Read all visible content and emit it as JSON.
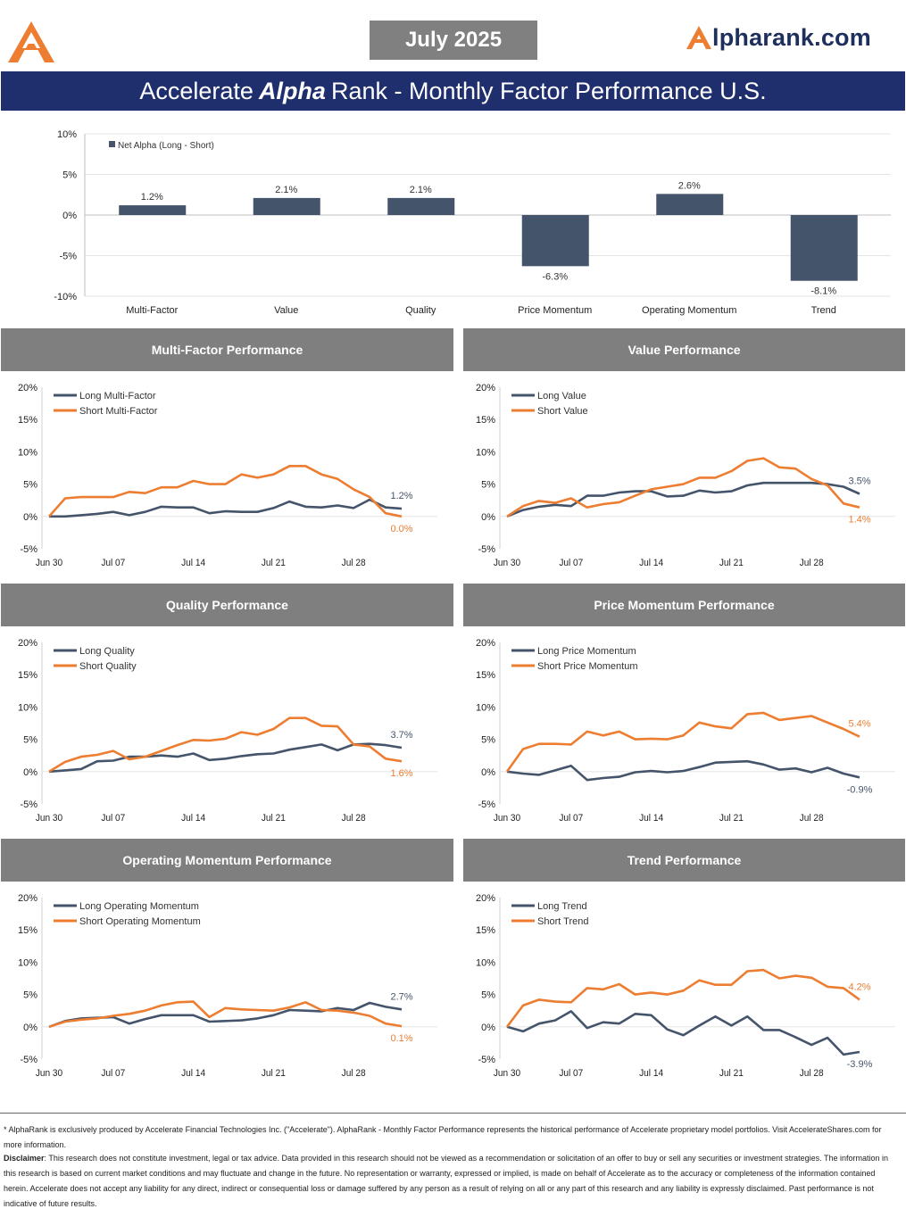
{
  "header": {
    "month": "July 2025",
    "brand": "lpharank.com",
    "brand_glyph": "A",
    "title_pre": "Accelerate",
    "title_em": "Alpha",
    "title_post": "Rank - Monthly Factor Performance U.S."
  },
  "colors": {
    "navy": "#44546a",
    "orange": "#ed7d31",
    "title_bg": "#1f2f6e",
    "panel_bg": "#7f7f7f"
  },
  "summary_chart": {
    "type": "bar",
    "legend": "Net Alpha (Long - Short)",
    "categories": [
      "Multi-Factor",
      "Value",
      "Quality",
      "Price Momentum",
      "Operating Momentum",
      "Trend"
    ],
    "values": [
      1.2,
      2.1,
      2.1,
      -6.3,
      2.6,
      -8.1
    ],
    "value_labels": [
      "1.2%",
      "2.1%",
      "2.1%",
      "-6.3%",
      "2.6%",
      "-8.1%"
    ],
    "yticks": [
      "10%",
      "5%",
      "0%",
      "-5%",
      "-10%"
    ],
    "ylim": [
      -10,
      10
    ]
  },
  "x_dates": [
    "Jun 30",
    "Jul 01",
    "Jul 02",
    "Jul 03",
    "Jul 07",
    "Jul 08",
    "Jul 09",
    "Jul 10",
    "Jul 11",
    "Jul 14",
    "Jul 15",
    "Jul 16",
    "Jul 17",
    "Jul 18",
    "Jul 21",
    "Jul 22",
    "Jul 23",
    "Jul 24",
    "Jul 25",
    "Jul 28",
    "Jul 29",
    "Jul 30",
    "Jul 31"
  ],
  "xticks": [
    "Jun 30",
    "Jul 07",
    "Jul 14",
    "Jul 21",
    "Jul 28"
  ],
  "yticks": [
    "20%",
    "15%",
    "10%",
    "5%",
    "0%",
    "-5%"
  ],
  "chart_data": [
    {
      "type": "line",
      "title": "Multi-Factor Performance",
      "ylim": [
        -5,
        20
      ],
      "series": [
        {
          "name": "Long Multi-Factor",
          "color": "#44546a",
          "values": [
            0,
            0,
            0.2,
            0.4,
            0.7,
            0.2,
            0.7,
            1.5,
            1.4,
            1.4,
            0.5,
            0.8,
            0.7,
            0.7,
            1.3,
            2.3,
            1.5,
            1.4,
            1.7,
            1.3,
            2.6,
            1.4,
            1.2
          ],
          "end_label": "1.2%"
        },
        {
          "name": "Short Multi-Factor",
          "color": "#ed7d31",
          "values": [
            0,
            2.8,
            3.0,
            3.0,
            3.0,
            3.8,
            3.6,
            4.5,
            4.5,
            5.5,
            5.0,
            5.0,
            6.5,
            6.0,
            6.5,
            7.8,
            7.8,
            6.5,
            5.8,
            4.2,
            3.0,
            0.5,
            0.0
          ],
          "end_label": "0.0%"
        }
      ]
    },
    {
      "type": "line",
      "title": "Value Performance",
      "ylim": [
        -5,
        20
      ],
      "series": [
        {
          "name": "Long Value",
          "color": "#44546a",
          "values": [
            0,
            1.0,
            1.5,
            1.8,
            1.6,
            3.2,
            3.2,
            3.7,
            3.9,
            3.9,
            3.1,
            3.2,
            4.0,
            3.7,
            3.9,
            4.8,
            5.2,
            5.2,
            5.2,
            5.2,
            5.0,
            4.6,
            3.5
          ],
          "end_label": "3.5%"
        },
        {
          "name": "Short Value",
          "color": "#ed7d31",
          "values": [
            0,
            1.6,
            2.4,
            2.1,
            2.8,
            1.4,
            1.9,
            2.2,
            3.2,
            4.2,
            4.6,
            5.0,
            6.0,
            6.0,
            7.0,
            8.6,
            9.0,
            7.6,
            7.4,
            5.8,
            4.8,
            2.0,
            1.4
          ],
          "end_label": "1.4%"
        }
      ]
    },
    {
      "type": "line",
      "title": "Quality Performance",
      "ylim": [
        -5,
        20
      ],
      "series": [
        {
          "name": "Long Quality",
          "color": "#44546a",
          "values": [
            0,
            0.2,
            0.4,
            1.6,
            1.7,
            2.3,
            2.3,
            2.5,
            2.3,
            2.8,
            1.8,
            2.0,
            2.4,
            2.7,
            2.8,
            3.4,
            3.8,
            4.2,
            3.3,
            4.2,
            4.3,
            4.1,
            3.7
          ],
          "end_label": "3.7%"
        },
        {
          "name": "Short Quality",
          "color": "#ed7d31",
          "values": [
            0,
            1.5,
            2.3,
            2.6,
            3.2,
            1.9,
            2.3,
            3.2,
            4.1,
            4.9,
            4.8,
            5.1,
            6.1,
            5.7,
            6.6,
            8.3,
            8.3,
            7.1,
            7.0,
            4.2,
            3.9,
            2.0,
            1.6
          ],
          "end_label": "1.6%"
        }
      ]
    },
    {
      "type": "line",
      "title": "Price Momentum Performance",
      "ylim": [
        -5,
        20
      ],
      "series": [
        {
          "name": "Long Price Momentum",
          "color": "#44546a",
          "values": [
            0,
            -0.3,
            -0.5,
            0.2,
            0.9,
            -1.3,
            -1.0,
            -0.8,
            -0.1,
            0.1,
            -0.1,
            0.1,
            0.7,
            1.4,
            1.5,
            1.6,
            1.1,
            0.3,
            0.5,
            -0.1,
            0.6,
            -0.3,
            -0.9
          ],
          "end_label": "-0.9%"
        },
        {
          "name": "Short Price Momentum",
          "color": "#ed7d31",
          "values": [
            0,
            3.5,
            4.3,
            4.3,
            4.2,
            6.2,
            5.6,
            6.2,
            5.0,
            5.1,
            5.0,
            5.6,
            7.6,
            7.0,
            6.7,
            8.9,
            9.1,
            8.0,
            8.3,
            8.6,
            7.6,
            6.6,
            5.4
          ],
          "end_label": "5.4%"
        }
      ]
    },
    {
      "type": "line",
      "title": "Operating Momentum Performance",
      "ylim": [
        -5,
        20
      ],
      "series": [
        {
          "name": "Long Operating Momentum",
          "color": "#44546a",
          "values": [
            0,
            0.9,
            1.3,
            1.4,
            1.5,
            0.5,
            1.2,
            1.8,
            1.8,
            1.8,
            0.8,
            0.9,
            1.0,
            1.3,
            1.8,
            2.6,
            2.5,
            2.4,
            2.9,
            2.6,
            3.7,
            3.1,
            2.7
          ],
          "end_label": "2.7%"
        },
        {
          "name": "Short Operating Momentum",
          "color": "#ed7d31",
          "values": [
            0,
            0.8,
            1.1,
            1.3,
            1.7,
            2.0,
            2.5,
            3.3,
            3.8,
            3.9,
            1.5,
            2.9,
            2.7,
            2.6,
            2.5,
            3.0,
            3.8,
            2.6,
            2.5,
            2.2,
            1.7,
            0.5,
            0.1
          ],
          "end_label": "0.1%"
        }
      ]
    },
    {
      "type": "line",
      "title": "Trend Performance",
      "ylim": [
        -5,
        20
      ],
      "series": [
        {
          "name": "Long Trend",
          "color": "#44546a",
          "values": [
            0,
            -0.7,
            0.5,
            1.0,
            2.4,
            -0.2,
            0.7,
            0.5,
            2.0,
            1.8,
            -0.4,
            -1.3,
            0.2,
            1.6,
            0.2,
            1.6,
            -0.5,
            -0.5,
            -1.6,
            -2.8,
            -1.7,
            -4.3,
            -3.9
          ],
          "end_label": "-3.9%"
        },
        {
          "name": "Short Trend",
          "color": "#ed7d31",
          "values": [
            0,
            3.3,
            4.2,
            3.9,
            3.8,
            6.0,
            5.8,
            6.6,
            5.0,
            5.3,
            5.0,
            5.6,
            7.2,
            6.5,
            6.5,
            8.6,
            8.8,
            7.5,
            7.9,
            7.6,
            6.2,
            6.0,
            4.2
          ],
          "end_label": "4.2%"
        }
      ]
    }
  ],
  "footer": {
    "note": "* AlphaRank is exclusively produced by Accelerate Financial Technologies Inc. (\"Accelerate\"). AlphaRank - Monthly Factor Performance represents the historical performance of Accelerate proprietary model portfolios. Visit AccelerateShares.com for more information.",
    "disclaimer_label": "Disclaimer",
    "disclaimer_text": ": This research does not constitute investment, legal or tax advice. Data provided in this research should not be viewed as a recommendation or solicitation of an offer to buy or sell any securities or investment strategies. The information in this research is based on current market conditions and may fluctuate and change in the future. No representation or warranty, expressed or implied, is made on behalf of Accelerate as to the accuracy or completeness of the information contained herein. Accelerate does not accept any liability for any direct, indirect or consequential loss or damage suffered by any person as a result of relying on all or any part of this research and any liability is expressly disclaimed. Past performance is not indicative of future results."
  }
}
